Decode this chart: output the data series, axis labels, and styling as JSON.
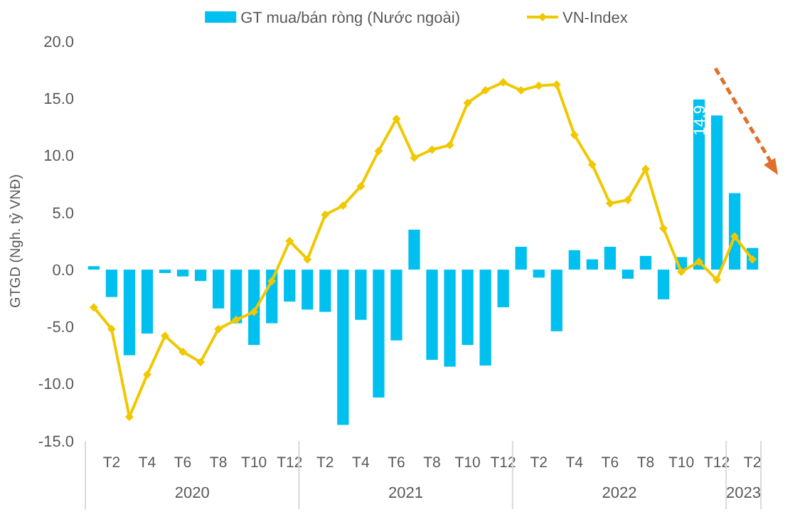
{
  "chart_data": {
    "type": "bar",
    "ylabel": "GTGD (Ngh. tỷ VNĐ)",
    "categories": [
      null,
      "T2",
      null,
      "T4",
      null,
      "T6",
      null,
      "T8",
      null,
      "T10",
      null,
      "T12",
      null,
      "T2",
      null,
      "T4",
      null,
      "T6",
      null,
      "T8",
      null,
      "T10",
      null,
      "T12",
      null,
      "T2",
      null,
      "T4",
      null,
      "T6",
      null,
      "T8",
      null,
      "T10",
      null,
      "T12",
      null,
      "T2"
    ],
    "annotations": [
      "2020",
      "2021",
      "2022",
      "2023"
    ],
    "series": [
      {
        "name": "GT mua/bán ròng (Nước ngoài)",
        "color": "#00c0ef",
        "values": [
          0.3,
          -2.4,
          -7.5,
          -5.6,
          -0.3,
          -0.6,
          -1.0,
          -3.4,
          -4.7,
          -6.6,
          -4.7,
          -2.8,
          -3.5,
          -3.7,
          -13.6,
          -4.4,
          -11.2,
          -6.2,
          3.5,
          -7.9,
          -8.5,
          -6.6,
          -8.4,
          -3.3,
          2.0,
          -0.7,
          -5.4,
          1.7,
          0.9,
          2.0,
          -0.8,
          1.2,
          -2.6,
          1.1,
          14.9,
          13.5,
          6.7,
          1.9
        ],
        "value_labels": [
          null,
          null,
          null,
          null,
          null,
          null,
          null,
          null,
          null,
          null,
          null,
          null,
          null,
          null,
          null,
          null,
          null,
          null,
          null,
          null,
          null,
          null,
          null,
          null,
          null,
          null,
          null,
          null,
          null,
          null,
          null,
          null,
          null,
          null,
          "14.9",
          null,
          null,
          null
        ]
      },
      {
        "name": "VN-Index",
        "type": "line",
        "color": "#f0c800",
        "marker": "diamond",
        "values": [
          -3.3,
          -5.2,
          -12.9,
          -9.2,
          -5.8,
          -7.2,
          -8.1,
          -5.2,
          -4.4,
          -3.7,
          -1.0,
          2.5,
          0.9,
          4.8,
          5.6,
          7.3,
          10.4,
          13.2,
          9.8,
          10.5,
          10.9,
          14.6,
          15.7,
          16.4,
          15.7,
          16.1,
          16.2,
          11.8,
          9.2,
          5.8,
          6.1,
          8.8,
          3.6,
          -0.2,
          0.7,
          -0.9,
          2.9,
          0.9
        ]
      }
    ],
    "ylim": [
      -15,
      20
    ],
    "yticks": [
      {
        "value": -15,
        "label": "-15.0"
      },
      {
        "value": -10,
        "label": "-10.0"
      },
      {
        "value": -5,
        "label": "-5.0"
      },
      {
        "value": 0,
        "label": "0.0"
      },
      {
        "value": 5,
        "label": "5.0"
      },
      {
        "value": 10,
        "label": "10.0"
      },
      {
        "value": 15,
        "label": "15.0"
      },
      {
        "value": 20,
        "label": "20.0"
      }
    ],
    "legend": "top",
    "grid": false
  }
}
